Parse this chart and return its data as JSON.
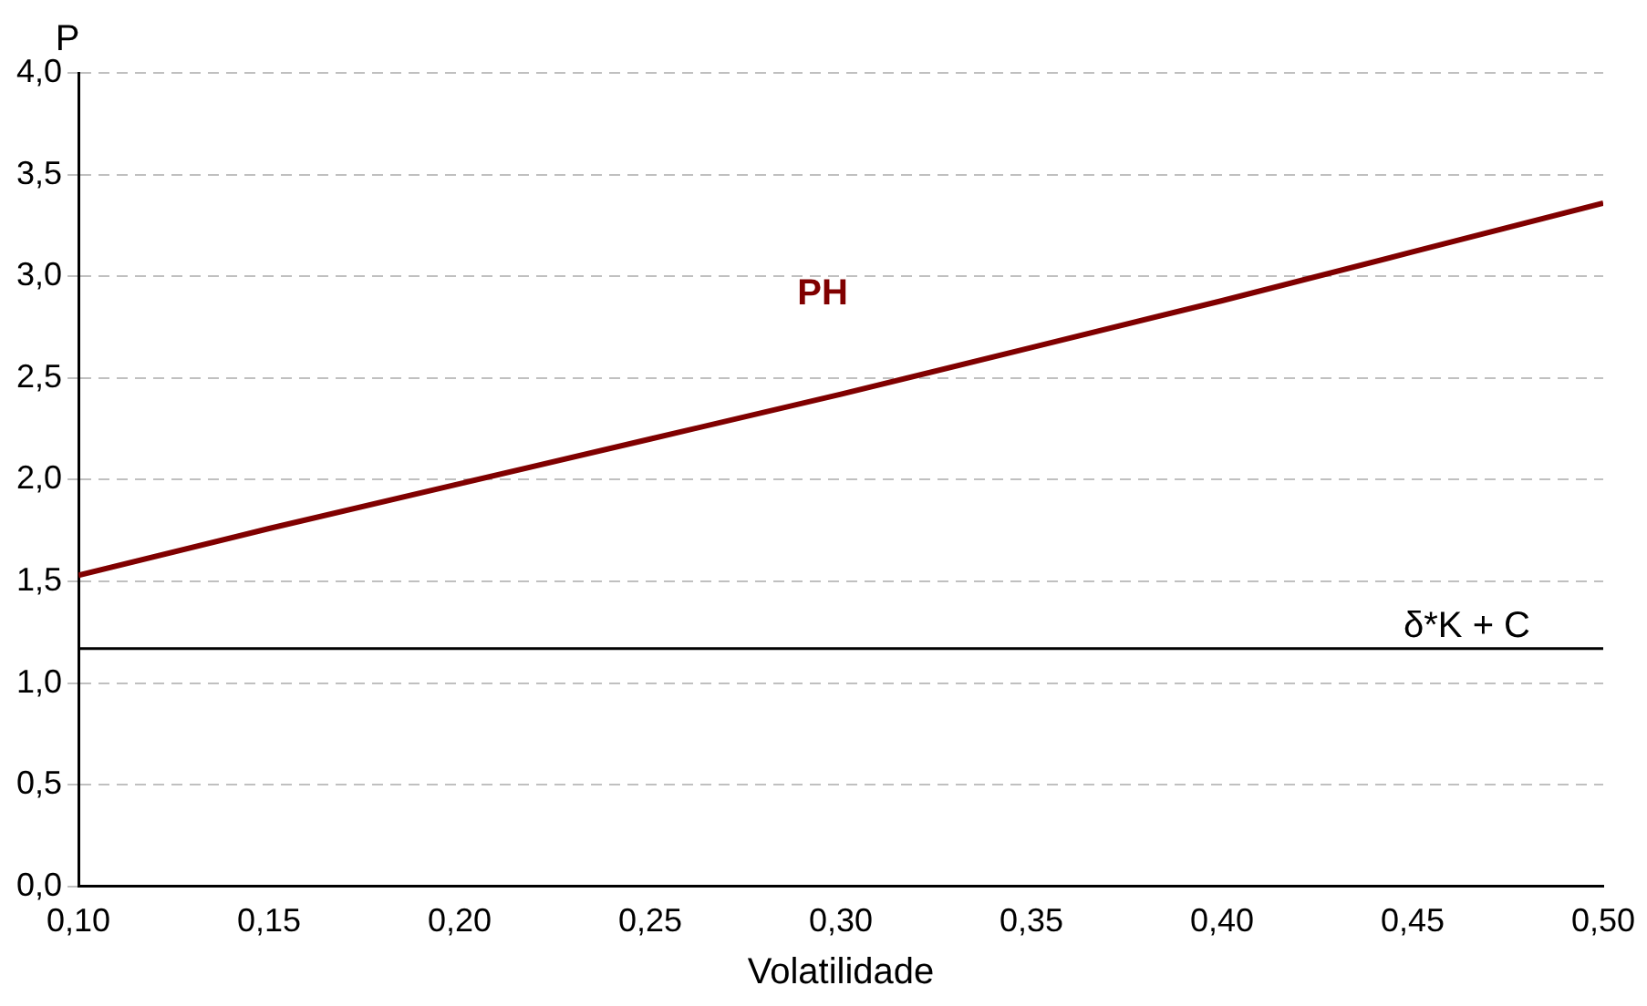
{
  "chart_data": {
    "type": "line",
    "xlabel": "Volatilidade",
    "ylabel": "P",
    "x": [
      0.1,
      0.15,
      0.2,
      0.25,
      0.3,
      0.35,
      0.4,
      0.45,
      0.5
    ],
    "series": [
      {
        "name": "PH",
        "color": "#800000",
        "values": [
          1.53,
          1.76,
          1.98,
          2.2,
          2.42,
          2.65,
          2.88,
          3.12,
          3.36
        ]
      }
    ],
    "xlim": [
      0.1,
      0.5
    ],
    "xticks": [
      {
        "value": 0.1,
        "label": "0,10"
      },
      {
        "value": 0.15,
        "label": "0,15"
      },
      {
        "value": 0.2,
        "label": "0,20"
      },
      {
        "value": 0.25,
        "label": "0,25"
      },
      {
        "value": 0.3,
        "label": "0,30"
      },
      {
        "value": 0.35,
        "label": "0,35"
      },
      {
        "value": 0.4,
        "label": "0,40"
      },
      {
        "value": 0.45,
        "label": "0,45"
      },
      {
        "value": 0.5,
        "label": "0,50"
      }
    ],
    "ylim": [
      0,
      4
    ],
    "yticks": [
      {
        "value": 0,
        "label": "0,0"
      },
      {
        "value": 0.5,
        "label": "0,5"
      },
      {
        "value": 1,
        "label": "1,0"
      },
      {
        "value": 1.5,
        "label": "1,5"
      },
      {
        "value": 2,
        "label": "2,0"
      },
      {
        "value": 2.5,
        "label": "2,5"
      },
      {
        "value": 3,
        "label": "3,0"
      },
      {
        "value": 3.5,
        "label": "3,5"
      },
      {
        "value": 4,
        "label": "4,0"
      }
    ],
    "ref_lines": [
      {
        "axis": "y",
        "value": 1.17,
        "label": "δ*K + C",
        "color": "#000000"
      }
    ],
    "grid": "y",
    "legend": false,
    "marker": "none",
    "line_style": "solid"
  }
}
